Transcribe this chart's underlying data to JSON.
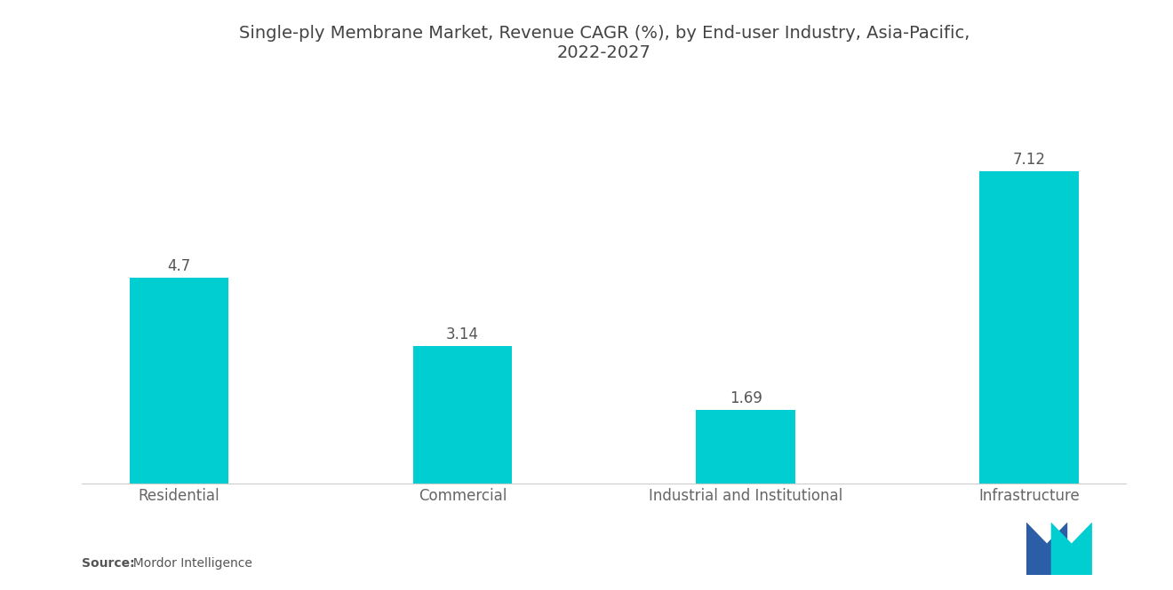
{
  "title": "Single-ply Membrane Market, Revenue CAGR (%), by End-user Industry, Asia-Pacific,\n2022-2027",
  "categories": [
    "Residential",
    "Commercial",
    "Industrial and Institutional",
    "Infrastructure"
  ],
  "values": [
    4.7,
    3.14,
    1.69,
    7.12
  ],
  "bar_color": "#00CED1",
  "background_color": "#ffffff",
  "title_fontsize": 14,
  "label_fontsize": 12,
  "value_fontsize": 12,
  "source_bold": "Source:",
  "source_rest": "  Mordor Intelligence",
  "ylim": [
    0,
    9.0
  ],
  "bar_width": 0.35,
  "logo_left_color": "#2B5EA7",
  "logo_right_color": "#00CED1"
}
